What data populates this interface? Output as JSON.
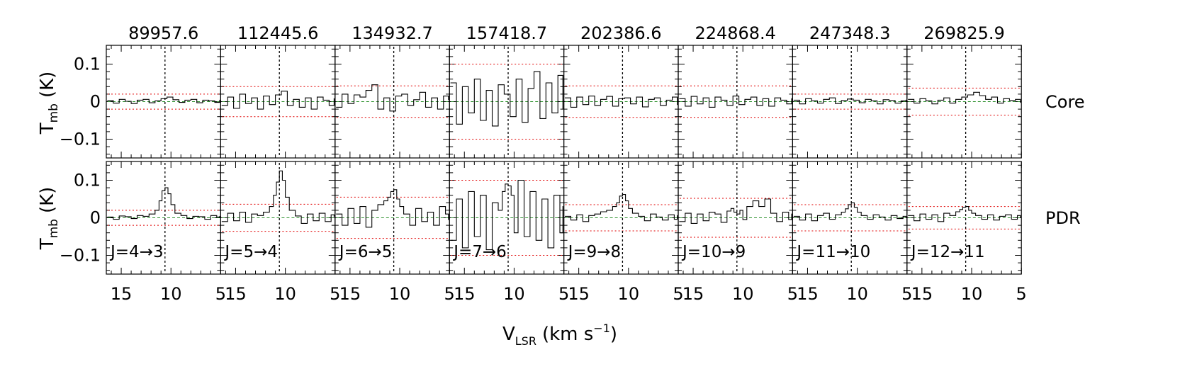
{
  "chart_data": {
    "type": "line",
    "x_axis": {
      "label_main": "V",
      "label_sub": "LSR",
      "label_unit": "(km s",
      "label_exp": "−1",
      "label_close": ")",
      "xlim": [
        16.5,
        5
      ],
      "ticks": [
        "15",
        "10",
        "5"
      ],
      "tick_values": [
        15,
        10,
        5
      ],
      "reversed": true
    },
    "y_axis": {
      "label_main": "T",
      "label_sub": "mb",
      "label_unit": "(K)",
      "ylim": [
        -0.15,
        0.15
      ],
      "ticks": [
        "0.1",
        "0",
        "−0.1"
      ],
      "tick_values": [
        0.1,
        0,
        -0.1
      ]
    },
    "systemic_velocity": 10.6,
    "columns": [
      {
        "frequency": "89957.6",
        "transition": "J=4→3"
      },
      {
        "frequency": "112445.6",
        "transition": "J=5→4"
      },
      {
        "frequency": "134932.7",
        "transition": "J=6→5"
      },
      {
        "frequency": "157418.7",
        "transition": "J=7→6"
      },
      {
        "frequency": "202386.6",
        "transition": "J=9→8"
      },
      {
        "frequency": "224868.4",
        "transition": "J=10→9"
      },
      {
        "frequency": "247348.3",
        "transition": "J=11→10"
      },
      {
        "frequency": "269825.9",
        "transition": "J=12→11"
      }
    ],
    "rows": [
      {
        "name": "Core",
        "noise_levels": [
          0.02,
          0.04,
          0.042,
          0.1,
          0.042,
          0.042,
          0.02,
          0.036
        ],
        "spectra": [
          {
            "x": [
              16.4,
              15.8,
              15.2,
              14.6,
              14.0,
              13.4,
              12.8,
              12.2,
              11.6,
              11.0,
              10.4,
              9.8,
              9.2,
              8.6,
              8.0,
              7.4,
              6.8,
              6.2,
              5.6,
              5.1
            ],
            "y": [
              0.003,
              -0.004,
              0.006,
              0.001,
              -0.005,
              0.004,
              0.006,
              -0.003,
              0.002,
              0.008,
              0.012,
              0.005,
              -0.002,
              0.004,
              0.006,
              -0.003,
              0.004,
              0.002,
              -0.002,
              0.004
            ]
          },
          {
            "x": [
              16.4,
              15.8,
              15.2,
              14.6,
              14.0,
              13.4,
              12.8,
              12.2,
              11.6,
              11.0,
              10.4,
              9.8,
              9.2,
              8.6,
              8.0,
              7.4,
              6.8,
              6.2,
              5.6,
              5.1
            ],
            "y": [
              -0.01,
              0.012,
              -0.018,
              0.02,
              -0.005,
              0.01,
              -0.02,
              0.015,
              -0.008,
              0.018,
              0.028,
              -0.01,
              0.006,
              -0.015,
              0.01,
              -0.02,
              0.012,
              0.004,
              -0.01,
              0.008
            ]
          },
          {
            "x": [
              16.4,
              15.8,
              15.2,
              14.6,
              14.0,
              13.4,
              12.8,
              12.2,
              11.6,
              11.0,
              10.4,
              9.8,
              9.2,
              8.6,
              8.0,
              7.4,
              6.8,
              6.2,
              5.6,
              5.1
            ],
            "y": [
              -0.015,
              0.02,
              -0.005,
              0.018,
              0.012,
              0.03,
              0.045,
              -0.02,
              0.01,
              -0.025,
              0.015,
              0.02,
              -0.01,
              0.005,
              0.025,
              -0.015,
              0.01,
              -0.02,
              0.015,
              0.005
            ]
          },
          {
            "x": [
              16.4,
              15.8,
              15.2,
              14.6,
              14.0,
              13.4,
              12.8,
              12.2,
              11.6,
              11.0,
              10.4,
              9.8,
              9.2,
              8.6,
              8.0,
              7.4,
              6.8,
              6.2,
              5.6,
              5.1
            ],
            "y": [
              0.05,
              -0.06,
              0.04,
              -0.03,
              0.06,
              -0.05,
              0.03,
              -0.065,
              0.045,
              0.02,
              -0.04,
              0.06,
              -0.055,
              0.035,
              0.08,
              -0.045,
              0.05,
              -0.03,
              0.07,
              -0.02
            ]
          },
          {
            "x": [
              16.4,
              15.8,
              15.2,
              14.6,
              14.0,
              13.4,
              12.8,
              12.2,
              11.6,
              11.0,
              10.4,
              9.8,
              9.2,
              8.6,
              8.0,
              7.4,
              6.8,
              6.2,
              5.6,
              5.1
            ],
            "y": [
              0.01,
              -0.015,
              0.012,
              -0.008,
              0.015,
              -0.01,
              0.006,
              0.014,
              -0.012,
              0.008,
              0.01,
              -0.006,
              0.012,
              -0.014,
              0.006,
              0.01,
              -0.01,
              0.004,
              0.012,
              -0.008
            ]
          },
          {
            "x": [
              16.4,
              15.8,
              15.2,
              14.6,
              14.0,
              13.4,
              12.8,
              12.2,
              11.6,
              11.0,
              10.4,
              9.8,
              9.2,
              8.6,
              8.0,
              7.4,
              6.8,
              6.2,
              5.6,
              5.1
            ],
            "y": [
              0.008,
              -0.012,
              0.014,
              -0.006,
              0.01,
              -0.015,
              0.012,
              0.004,
              -0.01,
              0.015,
              -0.008,
              0.006,
              0.012,
              -0.01,
              0.008,
              -0.012,
              0.01,
              0.004,
              -0.006,
              0.008
            ]
          },
          {
            "x": [
              16.4,
              15.8,
              15.2,
              14.6,
              14.0,
              13.4,
              12.8,
              12.2,
              11.6,
              11.0,
              10.4,
              9.8,
              9.2,
              8.6,
              8.0,
              7.4,
              6.8,
              6.2,
              5.6,
              5.1
            ],
            "y": [
              0.004,
              -0.006,
              0.008,
              0.002,
              -0.004,
              0.006,
              0.01,
              -0.005,
              0.003,
              0.007,
              0.004,
              -0.003,
              0.006,
              0.002,
              -0.006,
              0.005,
              0.003,
              -0.004,
              0.002,
              0.004
            ]
          },
          {
            "x": [
              16.4,
              15.8,
              15.2,
              14.6,
              14.0,
              13.4,
              12.8,
              12.2,
              11.6,
              11.0,
              10.4,
              9.8,
              9.2,
              8.6,
              8.0,
              7.4,
              6.8,
              6.2,
              5.6,
              5.1
            ],
            "y": [
              0.006,
              -0.004,
              0.008,
              0.002,
              -0.006,
              0.004,
              0.01,
              -0.004,
              0.006,
              0.012,
              0.018,
              0.025,
              0.016,
              0.006,
              0.012,
              -0.004,
              0.008,
              0.003,
              0.006,
              -0.002
            ]
          }
        ]
      },
      {
        "name": "PDR",
        "noise_levels": [
          0.02,
          0.036,
          0.055,
          0.1,
          0.035,
          0.052,
          0.035,
          0.03
        ],
        "spectra": [
          {
            "x": [
              16.4,
              15.8,
              15.2,
              14.6,
              14.0,
              13.4,
              12.8,
              12.2,
              11.6,
              11.2,
              10.9,
              10.6,
              10.3,
              10.0,
              9.6,
              9.0,
              8.4,
              7.8,
              7.2,
              6.6,
              6.0,
              5.4,
              5.1
            ],
            "y": [
              0.002,
              -0.004,
              0.005,
              0.003,
              -0.002,
              0.006,
              0.004,
              0.01,
              0.02,
              0.045,
              0.072,
              0.08,
              0.064,
              0.035,
              0.012,
              0.006,
              -0.002,
              0.004,
              0.003,
              -0.004,
              0.006,
              0.002,
              0.004
            ]
          },
          {
            "x": [
              16.4,
              15.8,
              15.2,
              14.6,
              14.0,
              13.4,
              12.8,
              12.2,
              11.6,
              11.2,
              10.9,
              10.6,
              10.3,
              10.0,
              9.6,
              9.0,
              8.4,
              7.8,
              7.2,
              6.6,
              6.0,
              5.4,
              5.1
            ],
            "y": [
              -0.01,
              0.012,
              -0.008,
              0.015,
              -0.012,
              0.01,
              0.006,
              0.015,
              0.03,
              0.06,
              0.095,
              0.125,
              0.1,
              0.055,
              0.02,
              0.005,
              -0.015,
              0.01,
              -0.008,
              0.012,
              -0.01,
              0.008,
              0.004
            ]
          },
          {
            "x": [
              16.4,
              15.8,
              15.2,
              14.6,
              14.0,
              13.4,
              12.8,
              12.2,
              11.6,
              11.2,
              10.9,
              10.6,
              10.3,
              10.0,
              9.6,
              9.0,
              8.4,
              7.8,
              7.2,
              6.6,
              6.0,
              5.4,
              5.1
            ],
            "y": [
              0.01,
              -0.02,
              0.025,
              -0.015,
              0.03,
              -0.025,
              0.02,
              0.035,
              0.045,
              0.055,
              0.07,
              0.075,
              0.05,
              0.03,
              0.01,
              -0.02,
              0.025,
              -0.01,
              0.015,
              -0.02,
              0.03,
              0.01,
              -0.005
            ]
          },
          {
            "x": [
              16.4,
              15.8,
              15.2,
              14.6,
              14.0,
              13.4,
              12.8,
              12.2,
              11.6,
              11.2,
              10.9,
              10.6,
              10.3,
              10.0,
              9.6,
              9.0,
              8.4,
              7.8,
              7.2,
              6.6,
              6.0,
              5.4,
              5.1
            ],
            "y": [
              -0.06,
              0.05,
              -0.08,
              0.07,
              -0.05,
              0.06,
              -0.085,
              0.04,
              0.02,
              0.07,
              0.09,
              0.085,
              0.06,
              -0.04,
              0.1,
              -0.05,
              0.07,
              -0.06,
              0.05,
              -0.08,
              0.06,
              -0.04,
              0.03
            ]
          },
          {
            "x": [
              16.4,
              15.8,
              15.2,
              14.6,
              14.0,
              13.4,
              12.8,
              12.2,
              11.6,
              11.2,
              10.9,
              10.6,
              10.3,
              10.0,
              9.6,
              9.0,
              8.4,
              7.8,
              7.2,
              6.6,
              6.0,
              5.4,
              5.1
            ],
            "y": [
              0.004,
              -0.006,
              0.008,
              -0.01,
              0.006,
              0.01,
              0.016,
              0.02,
              0.03,
              0.04,
              0.058,
              0.062,
              0.045,
              0.025,
              0.012,
              0.004,
              -0.008,
              0.01,
              0.002,
              -0.006,
              0.008,
              -0.004,
              0.006
            ]
          },
          {
            "x": [
              16.4,
              15.8,
              15.2,
              14.6,
              14.0,
              13.4,
              12.8,
              12.2,
              11.6,
              11.2,
              10.9,
              10.6,
              10.3,
              10.0,
              9.6,
              9.0,
              8.4,
              7.8,
              7.2,
              6.6,
              6.0,
              5.4,
              5.1
            ],
            "y": [
              -0.01,
              0.012,
              -0.015,
              0.01,
              -0.008,
              0.015,
              0.01,
              -0.012,
              0.018,
              0.025,
              0.015,
              0.01,
              0.02,
              -0.005,
              0.03,
              0.045,
              0.03,
              0.05,
              0.012,
              -0.01,
              0.015,
              -0.005,
              0.01
            ]
          },
          {
            "x": [
              16.4,
              15.8,
              15.2,
              14.6,
              14.0,
              13.4,
              12.8,
              12.2,
              11.6,
              11.2,
              10.9,
              10.6,
              10.3,
              10.0,
              9.6,
              9.0,
              8.4,
              7.8,
              7.2,
              6.6,
              6.0,
              5.4,
              5.1
            ],
            "y": [
              0.004,
              -0.006,
              0.01,
              -0.008,
              0.006,
              0.012,
              -0.004,
              0.008,
              0.015,
              0.024,
              0.035,
              0.04,
              0.028,
              0.015,
              0.006,
              -0.004,
              0.008,
              0.002,
              -0.006,
              0.006,
              -0.002,
              0.004,
              0.002
            ]
          },
          {
            "x": [
              16.4,
              15.8,
              15.2,
              14.6,
              14.0,
              13.4,
              12.8,
              12.2,
              11.6,
              11.2,
              10.9,
              10.6,
              10.3,
              10.0,
              9.6,
              9.0,
              8.4,
              7.8,
              7.2,
              6.6,
              6.0,
              5.4,
              5.1
            ],
            "y": [
              0.006,
              -0.008,
              0.01,
              -0.004,
              0.008,
              -0.01,
              0.012,
              0.006,
              0.016,
              0.022,
              0.028,
              0.03,
              0.02,
              0.012,
              0.006,
              -0.004,
              0.008,
              -0.006,
              0.004,
              0.008,
              -0.004,
              0.006,
              0.002
            ]
          }
        ]
      }
    ]
  }
}
